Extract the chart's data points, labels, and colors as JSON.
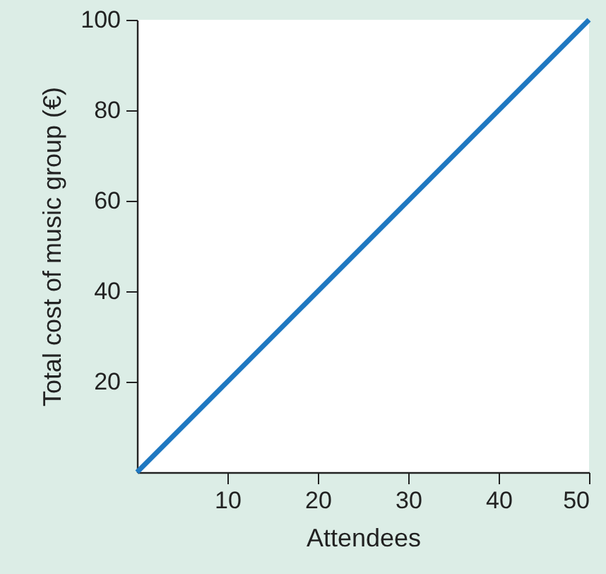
{
  "chart_data": {
    "type": "line",
    "xlabel": "Attendees",
    "ylabel": "Total cost of music group (€)",
    "x": [
      0,
      50
    ],
    "series": [
      {
        "color": "#1f78c1",
        "values": [
          0,
          100
        ]
      }
    ],
    "xlim": [
      0,
      50
    ],
    "ylim": [
      0,
      100
    ],
    "xticks": [
      10,
      20,
      30,
      40,
      50
    ],
    "yticks": [
      20,
      40,
      60,
      80,
      100
    ],
    "grid": false,
    "line_style": "solid",
    "marker": "none"
  }
}
